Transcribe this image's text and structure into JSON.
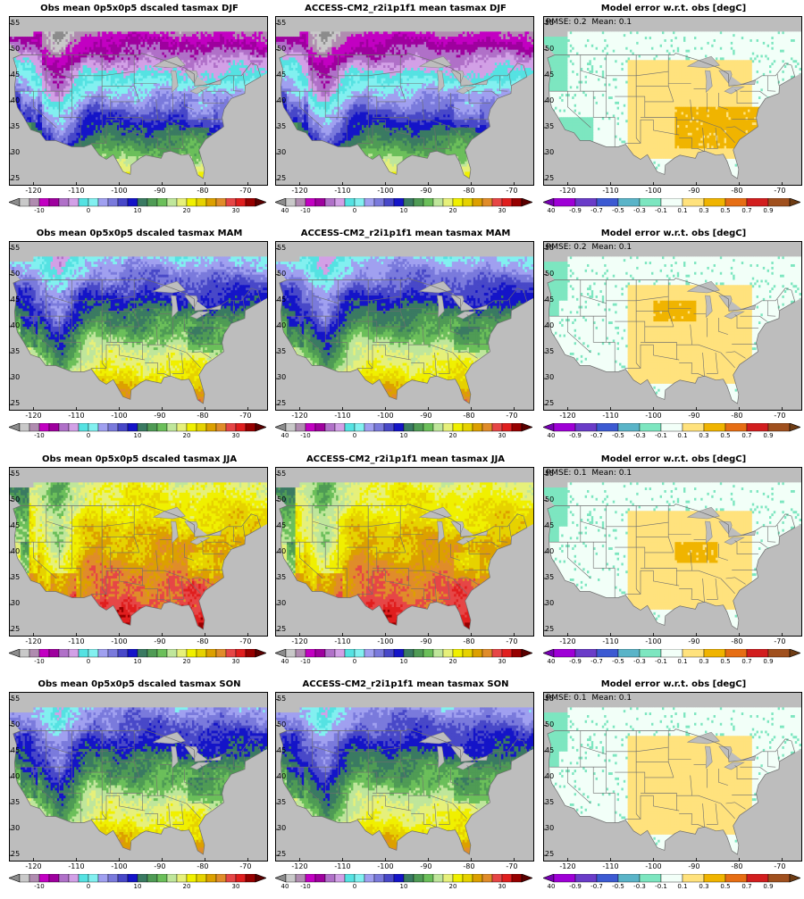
{
  "panels": [
    {
      "title": "Obs mean 0p5x0p5 dscaled tasmax DJF",
      "kind": "temp",
      "season": "DJF"
    },
    {
      "title": "ACCESS-CM2_r2i1p1f1 mean tasmax DJF",
      "kind": "temp",
      "season": "DJF"
    },
    {
      "title": "Model error w.r.t. obs [degC]",
      "kind": "err",
      "stats": "RMSE: 0.2  Mean: 0.1",
      "season": "DJF"
    },
    {
      "title": "Obs mean 0p5x0p5 dscaled tasmax MAM",
      "kind": "temp",
      "season": "MAM"
    },
    {
      "title": "ACCESS-CM2_r2i1p1f1 mean tasmax MAM",
      "kind": "temp",
      "season": "MAM"
    },
    {
      "title": "Model error w.r.t. obs [degC]",
      "kind": "err",
      "stats": "RMSE: 0.2  Mean: 0.1",
      "season": "MAM"
    },
    {
      "title": "Obs mean 0p5x0p5 dscaled tasmax JJA",
      "kind": "temp",
      "season": "JJA"
    },
    {
      "title": "ACCESS-CM2_r2i1p1f1 mean tasmax JJA",
      "kind": "temp",
      "season": "JJA"
    },
    {
      "title": "Model error w.r.t. obs [degC]",
      "kind": "err",
      "stats": "RMSE: 0.1  Mean: 0.1",
      "season": "JJA"
    },
    {
      "title": "Obs mean 0p5x0p5 dscaled tasmax SON",
      "kind": "temp",
      "season": "SON"
    },
    {
      "title": "ACCESS-CM2_r2i1p1f1 mean tasmax SON",
      "kind": "temp",
      "season": "SON"
    },
    {
      "title": "Model error w.r.t. obs [degC]",
      "kind": "err",
      "stats": "RMSE: 0.1  Mean: 0.1",
      "season": "SON"
    }
  ],
  "axes": {
    "lon_ticks": [
      "-120",
      "-110",
      "-100",
      "-90",
      "-80",
      "-70"
    ],
    "lat_ticks": [
      "55",
      "50",
      "45",
      "40",
      "35",
      "30",
      "25"
    ]
  },
  "temp_colorbar": {
    "labels": [
      "-10",
      "0",
      "10",
      "20",
      "30",
      "40"
    ],
    "colors": [
      "#c9c9c9",
      "#b08cb0",
      "#c200c2",
      "#9e009e",
      "#b070c8",
      "#d2a0e6",
      "#55e2e2",
      "#82f0f0",
      "#a0a0f0",
      "#7a7adc",
      "#4848c8",
      "#1414c8",
      "#3a7a62",
      "#4f9b55",
      "#6bbf5a",
      "#bfe69b",
      "#e6f07a",
      "#f0f000",
      "#e6d200",
      "#dca000",
      "#e08c2a",
      "#e64646",
      "#e01e1e",
      "#960000"
    ],
    "under": "#8c8c8c",
    "over": "#5a0000"
  },
  "err_colorbar": {
    "labels": [
      "-0.9",
      "-0.7",
      "-0.5",
      "-0.3",
      "-0.1",
      "0.1",
      "0.3",
      "0.5",
      "0.7",
      "0.9"
    ],
    "colors": [
      "#9e00d6",
      "#6a3cc8",
      "#3c5ad2",
      "#5ab4c8",
      "#7de6c0",
      "#f2fff8",
      "#ffe27d",
      "#f0b400",
      "#e66e14",
      "#d21e1e",
      "#a0501e"
    ],
    "under": "#7800b4",
    "over": "#6e3c14"
  }
}
